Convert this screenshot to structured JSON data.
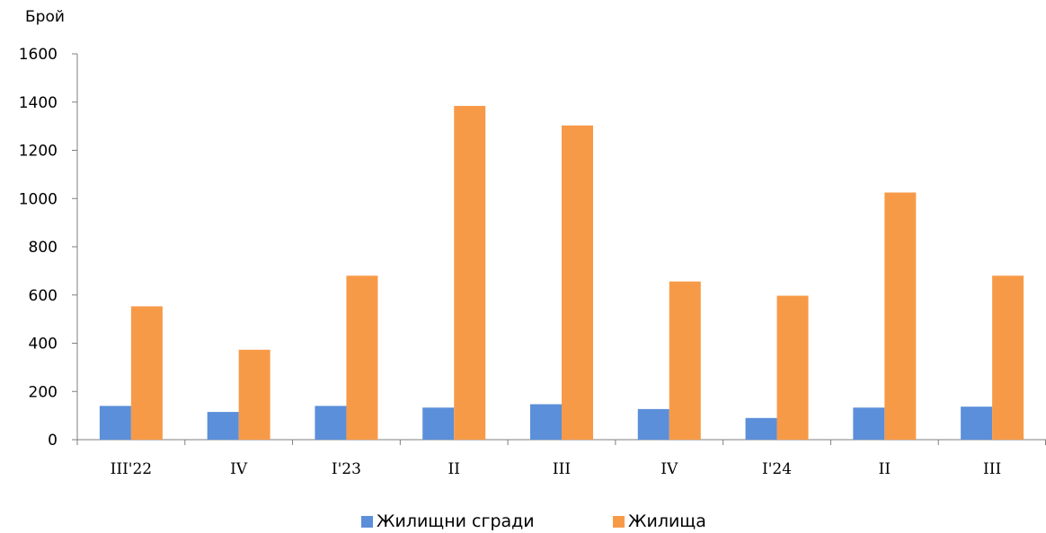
{
  "chart_data": {
    "type": "bar",
    "ylabel": "Брой",
    "ylim": [
      0,
      1600
    ],
    "yticks": [
      0,
      200,
      400,
      600,
      800,
      1000,
      1200,
      1400,
      1600
    ],
    "categories": [
      "III'22",
      "IV",
      "I'23",
      "II",
      "III",
      "IV",
      "I'24",
      "II",
      "III"
    ],
    "series": [
      {
        "name": "Жилищни сгради",
        "color": "#5B8FD9",
        "values": [
          140,
          115,
          140,
          133,
          147,
          127,
          90,
          133,
          137
        ]
      },
      {
        "name": "Жилища",
        "color": "#F79A48",
        "values": [
          553,
          373,
          680,
          1384,
          1303,
          656,
          597,
          1025,
          680
        ]
      }
    ],
    "grid": false,
    "legend_position": "bottom"
  }
}
